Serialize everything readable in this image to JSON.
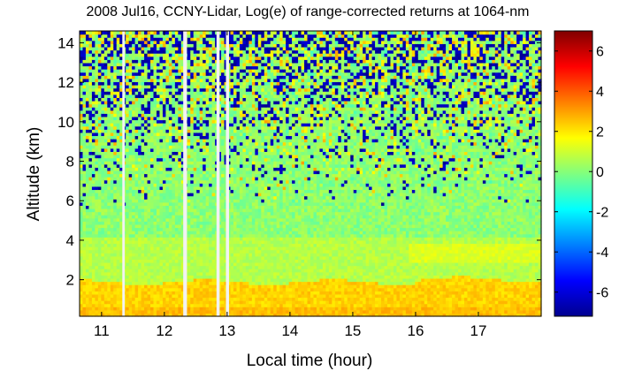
{
  "chart_data": {
    "type": "heatmap",
    "title": "2008 Jul16, CCNY-Lidar, Log(e) of range-corrected returns at 1064-nm",
    "xlabel": "Local time (hour)",
    "ylabel": "Altitude (km)",
    "xlim": [
      10.65,
      18.0
    ],
    "ylim": [
      0.15,
      14.6
    ],
    "x_ticks": [
      11,
      12,
      13,
      14,
      15,
      16,
      17
    ],
    "y_ticks": [
      2,
      4,
      6,
      8,
      10,
      12,
      14
    ],
    "grid": false,
    "colormap": "jet",
    "colorbar": {
      "clim": [
        -7.2,
        7.0
      ],
      "ticks": [
        -6,
        -4,
        -2,
        0,
        2,
        4,
        6
      ]
    },
    "data_gaps_hours": [
      [
        11.33,
        11.37
      ],
      [
        12.3,
        12.36
      ],
      [
        12.83,
        12.88
      ],
      [
        12.98,
        13.03
      ]
    ],
    "layers": [
      {
        "feature": "boundary layer",
        "x": [
          10.65,
          18.0
        ],
        "altitude_km": [
          0.15,
          1.9
        ],
        "value": 2.3
      },
      {
        "feature": "elevated aerosol layer",
        "x": [
          15.9,
          18.0
        ],
        "altitude_km": [
          2.8,
          3.8
        ],
        "value": 1.2
      },
      {
        "feature": "free troposphere",
        "x": [
          10.65,
          18.0
        ],
        "altitude_km": [
          1.9,
          8.0
        ],
        "value": 0.3
      },
      {
        "feature": "noise region",
        "x": [
          10.65,
          18.0
        ],
        "altitude_km": [
          8.0,
          14.6
        ],
        "value": 0.0
      }
    ]
  }
}
